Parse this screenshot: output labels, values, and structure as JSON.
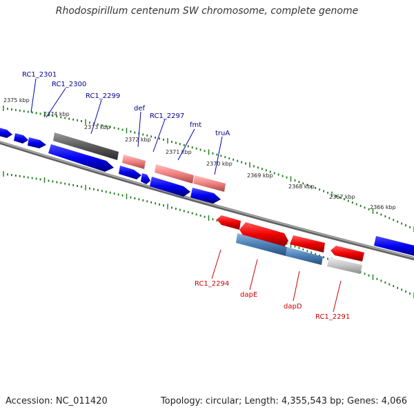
{
  "title": "Rhodospirillum centenum SW chromosome, complete genome",
  "footer": {
    "accession": "Accession: NC_011420",
    "topology": "Topology: circular; Length: 4,355,543 bp; Genes: 4,066"
  },
  "colors": {
    "forward_label": "#00008b",
    "reverse_label": "#cc0000",
    "tick": "#1a7a1a",
    "backbone": "#808080"
  },
  "scale_labels": [
    "2375 kbp",
    "2374 kbp",
    "2373 kbp",
    "2372 kbp",
    "2371 kbp",
    "2370 kbp",
    "2369 kbp",
    "2368 kbp",
    "2367 kbp",
    "2366 kbp"
  ],
  "forward_gene_labels": [
    "RC1_2301",
    "RC1_2300",
    "RC1_2299",
    "def",
    "RC1_2297",
    "fmt",
    "truA"
  ],
  "reverse_gene_labels": [
    "RC1_2294",
    "dapE",
    "dapD",
    "RC1_2291"
  ]
}
